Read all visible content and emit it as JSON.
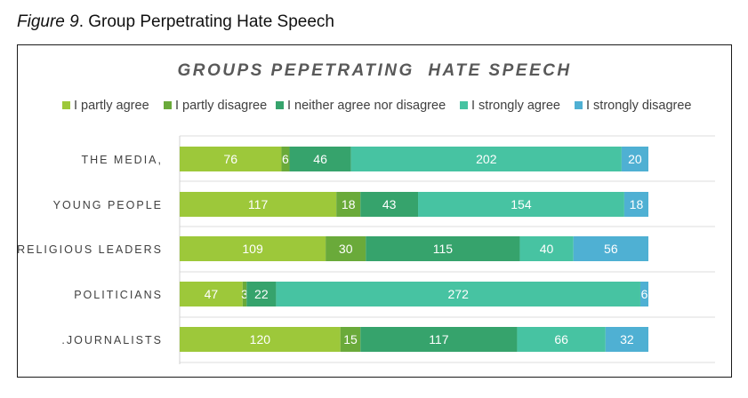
{
  "figure_caption": {
    "label": "Figure 9",
    "text": ". Group Perpetrating Hate Speech"
  },
  "chart_data": {
    "type": "bar",
    "orientation": "horizontal",
    "stacked": true,
    "title": "GROUPS PEPETRATING  HATE SPEECH",
    "legend_position": "top",
    "categories": [
      "THE MEDIA,",
      "YOUNG PEOPLE",
      "RELIGIOUS LEADERS",
      "POLITICIANS",
      ".JOURNALISTS"
    ],
    "series": [
      {
        "name": "I partly agree",
        "color": "#9dc83a",
        "values": [
          76,
          117,
          109,
          47,
          120
        ]
      },
      {
        "name": "I partly disagree",
        "color": "#6aaa3a",
        "values": [
          6,
          18,
          30,
          3,
          15
        ]
      },
      {
        "name": "I neither agree nor disagree",
        "color": "#36a36c",
        "values": [
          46,
          43,
          115,
          22,
          117
        ]
      },
      {
        "name": "I strongly agree",
        "color": "#47c3a2",
        "values": [
          202,
          154,
          40,
          272,
          66
        ]
      },
      {
        "name": "I strongly disagree",
        "color": "#4fb0d3",
        "values": [
          20,
          18,
          56,
          6,
          32
        ]
      }
    ],
    "grid": true
  }
}
